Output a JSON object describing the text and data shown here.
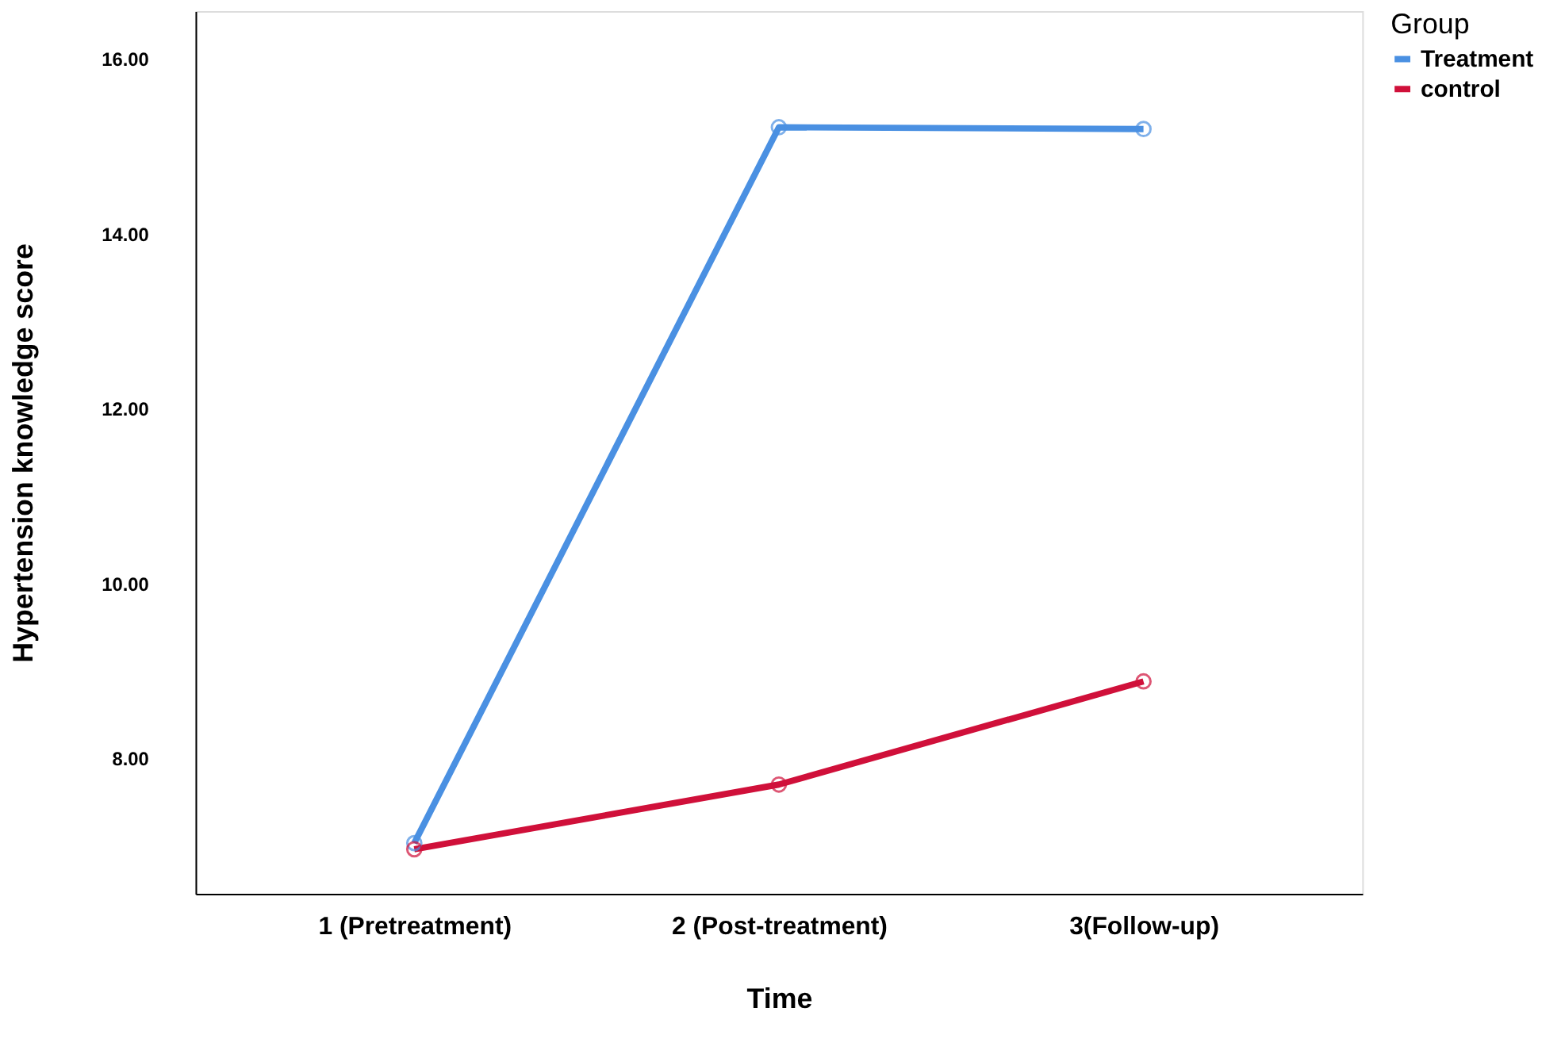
{
  "chart_data": {
    "type": "line",
    "xlabel": "Time",
    "ylabel": "Hypertension knowledge score",
    "legend_title": "Group",
    "legend": "top right",
    "grid": false,
    "marker": "circle",
    "line_style": "solid",
    "categories": [
      "1 (Pretreatment)",
      "2 (Post-treatment)",
      "3(Follow-up)"
    ],
    "ylim": [
      6.45,
      16.55
    ],
    "yticks": [
      {
        "value": 8,
        "label": "8.00"
      },
      {
        "value": 10,
        "label": "10.00"
      },
      {
        "value": 12,
        "label": "12.00"
      },
      {
        "value": 14,
        "label": "14.00"
      },
      {
        "value": 16,
        "label": "16.00"
      }
    ],
    "series": [
      {
        "name": "Treatment",
        "color": "#4a90e2",
        "values": [
          7.03,
          15.22,
          15.2
        ]
      },
      {
        "name": "control",
        "color": "#d0103a",
        "values": [
          6.96,
          7.7,
          8.88
        ]
      }
    ]
  }
}
